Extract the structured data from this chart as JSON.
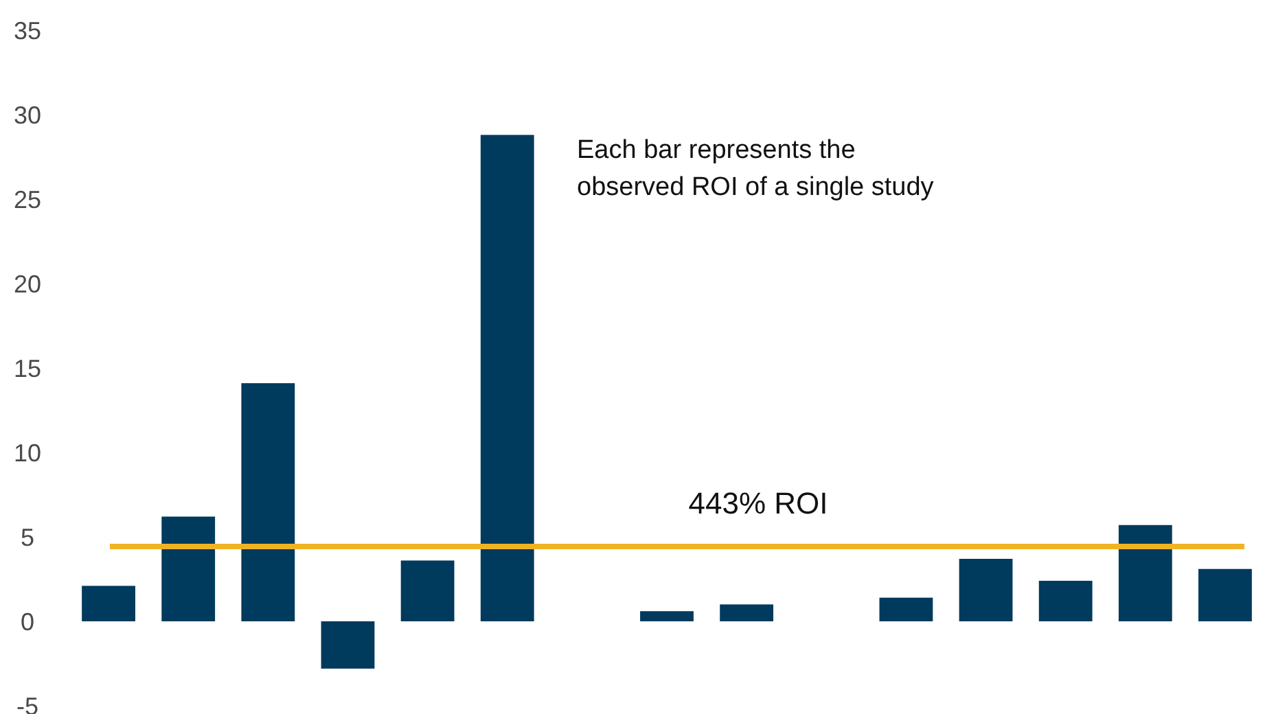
{
  "chart_data": {
    "type": "bar",
    "categories": [
      null,
      null,
      null,
      null,
      null,
      null,
      null,
      null,
      null,
      null,
      null,
      null,
      null,
      null,
      null
    ],
    "values": [
      2.1,
      6.2,
      14.1,
      -2.8,
      3.6,
      28.8,
      0,
      0.6,
      1.0,
      0,
      1.4,
      3.7,
      2.4,
      5.7,
      3.1
    ],
    "color": "#003a5d",
    "ylim": [
      -5,
      35
    ],
    "yticks": [
      -5,
      0,
      5,
      10,
      15,
      20,
      25,
      30,
      35
    ],
    "grid": false,
    "ref_lines": [
      {
        "axis": "y",
        "value": 4.43,
        "label": "443% ROI",
        "color": "#f0b323"
      }
    ],
    "annotations": [
      "Each bar represents the observed ROI of a single study"
    ]
  }
}
